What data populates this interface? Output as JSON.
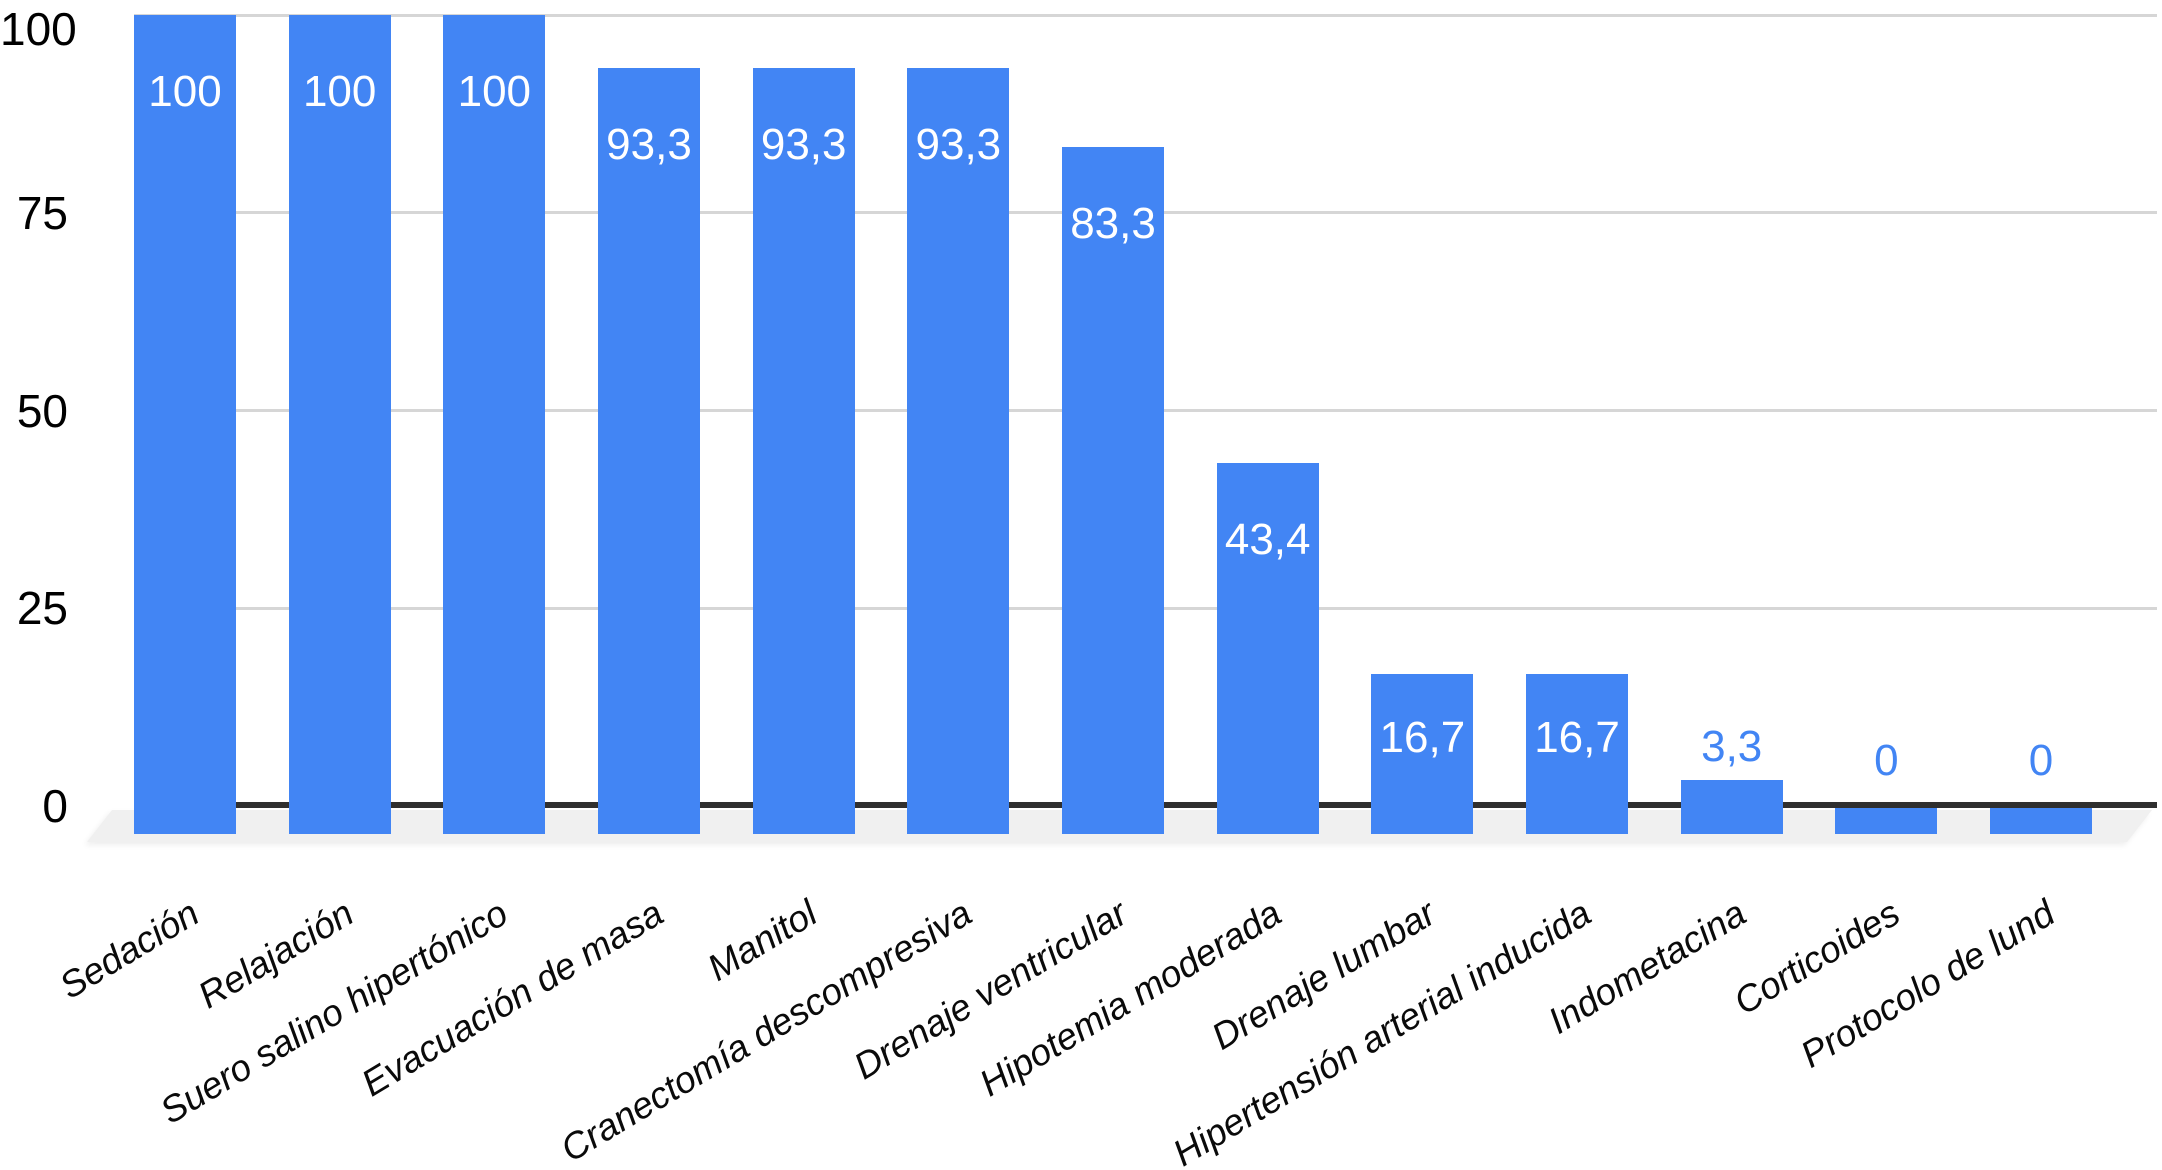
{
  "chart_data": {
    "type": "bar",
    "title": "",
    "xlabel": "",
    "ylabel": "",
    "categories": [
      "Sedación",
      "Relajación",
      "Suero salino hipertónico",
      "Evacuación de masa",
      "Manitol",
      "Cranectomía descompresiva",
      "Drenaje ventricular",
      "Hipotemia moderada",
      "Drenaje lumbar",
      "Hipertensión arterial inducida",
      "Indometacina",
      "Corticoides",
      "Protocolo de lund"
    ],
    "values": [
      100,
      100,
      100,
      93.3,
      93.3,
      93.3,
      83.3,
      43.4,
      16.7,
      16.7,
      3.3,
      0,
      0
    ],
    "value_labels": [
      "100",
      "100",
      "100",
      "93,3",
      "93,3",
      "93,3",
      "83,3",
      "43,4",
      "16,7",
      "16,7",
      "3,3",
      "0",
      "0"
    ],
    "y_ticks": [
      0,
      25,
      50,
      75,
      100
    ],
    "y_tick_labels": [
      "0",
      "25",
      "50",
      "75",
      "100"
    ],
    "ylim": [
      0,
      100
    ],
    "grid": "horizontal",
    "legend": "none",
    "colors": {
      "bar": "#4285f4",
      "value_label_inside": "#ffffff",
      "value_label_outside": "#4285f4",
      "gridline": "#d6d6d6",
      "baseline": "#2f2f2f",
      "floor": "#f0f0f0",
      "axis_text": "#000000",
      "category_text": "#0a0a0a"
    }
  }
}
